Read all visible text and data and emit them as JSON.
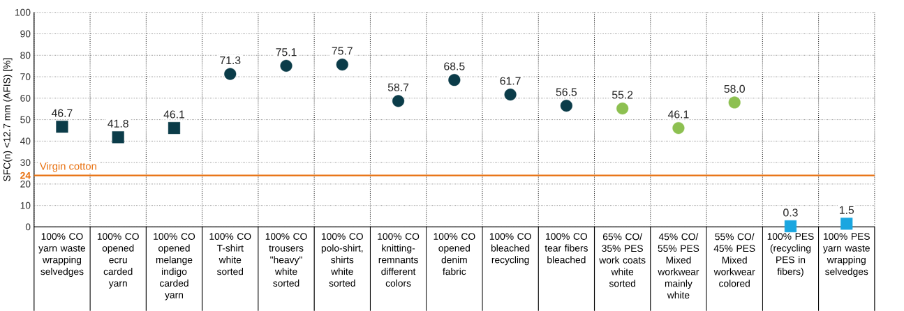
{
  "chart_data": {
    "type": "scatter",
    "ylabel": "SFC(n) <12.7 mm (AFIS) [%]",
    "categories": [
      "100% CO yarn waste wrapping selvedges",
      "100% CO opened ecru carded yarn",
      "100% CO opened melange indigo carded yarn",
      "100% CO T-shirt white sorted",
      "100% CO trousers \"heavy\" white sorted",
      "100% CO polo-shirt, shirts white sorted",
      "100% CO knitting-remnants different colors",
      "100% CO opened denim fabric",
      "100% CO bleached recycling",
      "100% CO tear fibers bleached",
      "65% CO/ 35% PES work coats white sorted",
      "45% CO/ 55% PES Mixed workwear mainly white",
      "55% CO/ 45% PES Mixed workwear colored",
      "100% PES (recycling PES in fibers)",
      "100% PES yarn waste wrapping selvedges"
    ],
    "series": [
      {
        "color": "#0b3c49",
        "marker": "square",
        "values": [
          46.7,
          41.8,
          46.1,
          null,
          null,
          null,
          null,
          null,
          null,
          null,
          null,
          null,
          null,
          null,
          null
        ],
        "value_labels": [
          "46.7",
          "41.8",
          "46.1",
          null,
          null,
          null,
          null,
          null,
          null,
          null,
          null,
          null,
          null,
          null,
          null
        ]
      },
      {
        "color": "#0b3c49",
        "marker": "circle",
        "values": [
          null,
          null,
          null,
          71.3,
          75.1,
          75.7,
          58.7,
          68.5,
          61.7,
          56.5,
          null,
          null,
          null,
          null,
          null
        ],
        "value_labels": [
          null,
          null,
          null,
          "71.3",
          "75.1",
          "75.7",
          "58.7",
          "68.5",
          "61.7",
          "56.5",
          null,
          null,
          null,
          null,
          null
        ]
      },
      {
        "color": "#8dc051",
        "marker": "circle",
        "values": [
          null,
          null,
          null,
          null,
          null,
          null,
          null,
          null,
          null,
          null,
          55.2,
          46.1,
          58.0,
          null,
          null
        ],
        "value_labels": [
          null,
          null,
          null,
          null,
          null,
          null,
          null,
          null,
          null,
          null,
          "55.2",
          "46.1",
          "58.0",
          null,
          null
        ]
      },
      {
        "color": "#1aa6e0",
        "marker": "square",
        "values": [
          null,
          null,
          null,
          null,
          null,
          null,
          null,
          null,
          null,
          null,
          null,
          null,
          null,
          0.3,
          1.5
        ],
        "value_labels": [
          null,
          null,
          null,
          null,
          null,
          null,
          null,
          null,
          null,
          null,
          null,
          null,
          null,
          "0.3",
          "1.5"
        ]
      }
    ],
    "ylim": [
      0,
      100
    ],
    "yticks": [
      0,
      10,
      20,
      24,
      30,
      40,
      50,
      60,
      70,
      80,
      90,
      100
    ],
    "ref_lines": [
      {
        "axis": "y",
        "value": 24,
        "label": "Virgin cotton",
        "color": "#e8700f"
      }
    ],
    "grid": true
  }
}
